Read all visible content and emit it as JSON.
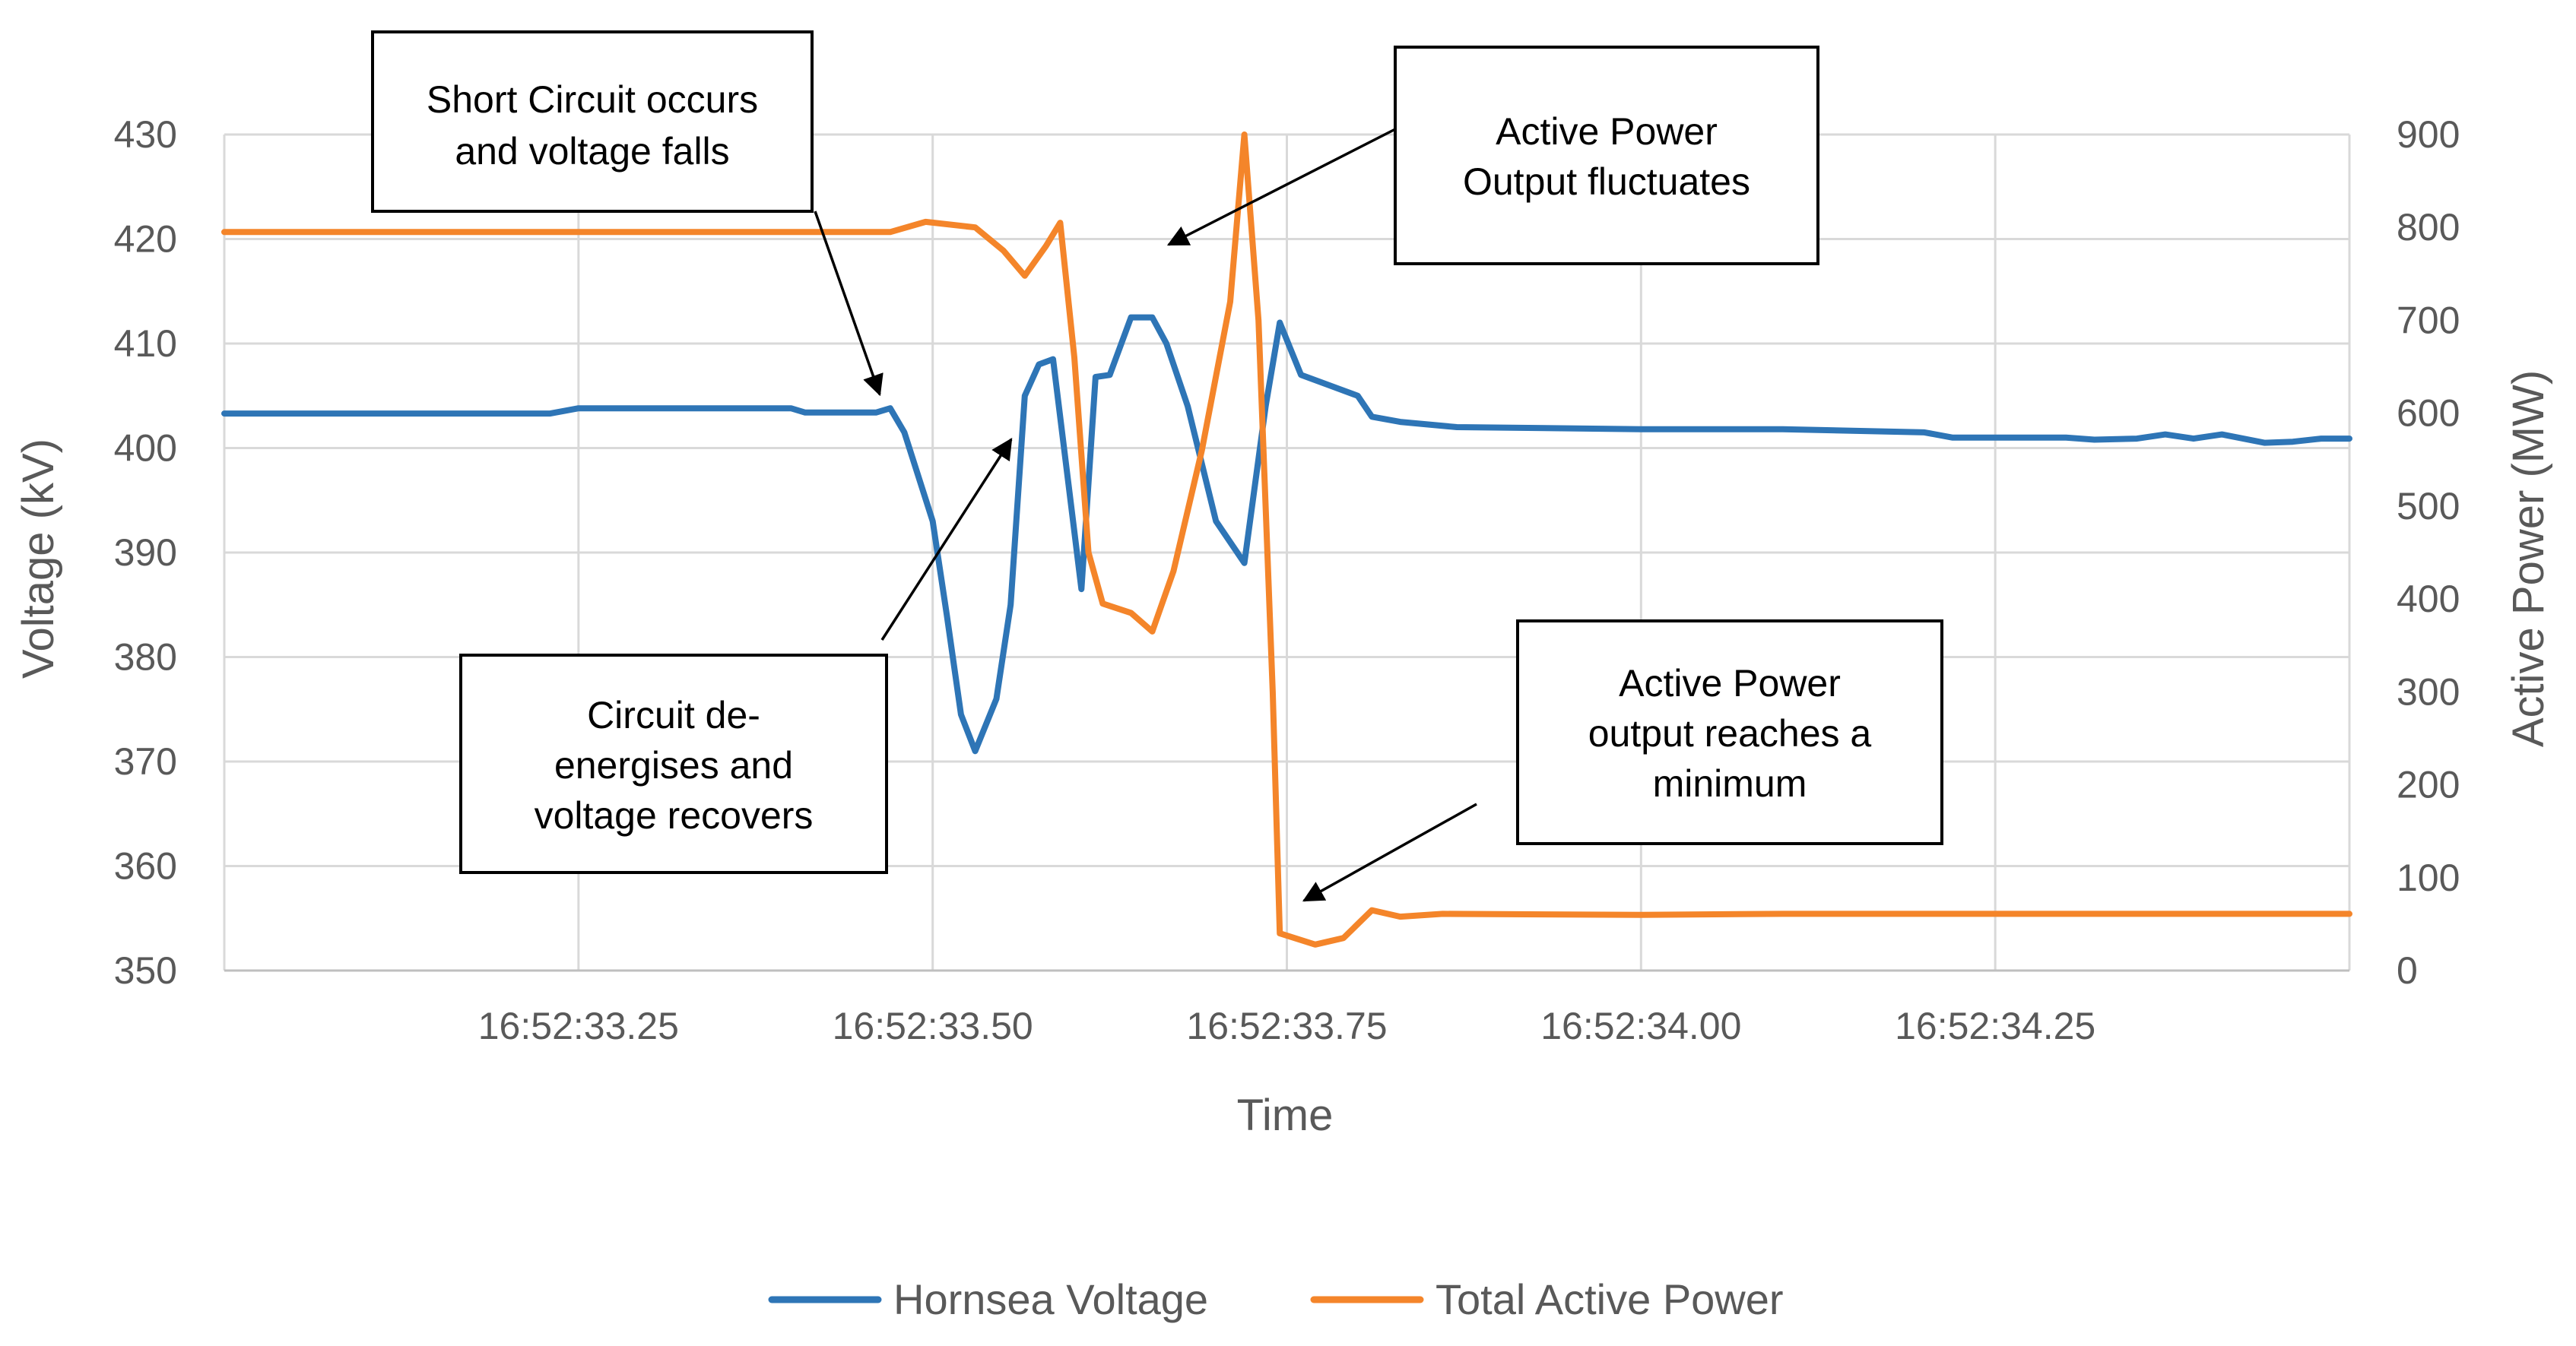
{
  "chart_data": {
    "type": "line",
    "xlabel": "Time",
    "ylabel_left": "Voltage (kV)",
    "ylabel_right": "Active Power (MW)",
    "ylim_left": [
      350,
      430
    ],
    "ylim_right": [
      0,
      900
    ],
    "xlim": [
      "16:52:33.000",
      "16:52:34.500"
    ],
    "left_ticks": [
      "350",
      "360",
      "370",
      "380",
      "390",
      "400",
      "410",
      "420",
      "430"
    ],
    "right_ticks": [
      "0",
      "100",
      "200",
      "300",
      "400",
      "500",
      "600",
      "700",
      "800",
      "900"
    ],
    "x_ticks": [
      {
        "time": "16:52:33.250",
        "label": "16:52:33.25"
      },
      {
        "time": "16:52:33.500",
        "label": "16:52:33.50"
      },
      {
        "time": "16:52:33.750",
        "label": "16:52:33.75"
      },
      {
        "time": "16:52:34.000",
        "label": "16:52:34.00"
      },
      {
        "time": "16:52:34.250",
        "label": "16:52:34.25"
      }
    ],
    "grid": true,
    "legend_position": "bottom",
    "series": [
      {
        "name": "Hornsea Voltage",
        "axis": "left",
        "color": "#2e75b6",
        "points": [
          [
            "16:52:33.000",
            403.3
          ],
          [
            "16:52:33.230",
            403.3
          ],
          [
            "16:52:33.250",
            403.8
          ],
          [
            "16:52:33.400",
            403.8
          ],
          [
            "16:52:33.410",
            403.4
          ],
          [
            "16:52:33.460",
            403.4
          ],
          [
            "16:52:33.470",
            403.8
          ],
          [
            "16:52:33.480",
            401.5
          ],
          [
            "16:52:33.500",
            393.0
          ],
          [
            "16:52:33.510",
            384.0
          ],
          [
            "16:52:33.520",
            374.5
          ],
          [
            "16:52:33.530",
            371.0
          ],
          [
            "16:52:33.545",
            376.0
          ],
          [
            "16:52:33.555",
            385.0
          ],
          [
            "16:52:33.565",
            405.0
          ],
          [
            "16:52:33.575",
            408.0
          ],
          [
            "16:52:33.585",
            408.5
          ],
          [
            "16:52:33.600",
            392.0
          ],
          [
            "16:52:33.605",
            386.5
          ],
          [
            "16:52:33.615",
            406.8
          ],
          [
            "16:52:33.625",
            407.0
          ],
          [
            "16:52:33.640",
            412.5
          ],
          [
            "16:52:33.655",
            412.5
          ],
          [
            "16:52:33.665",
            410.0
          ],
          [
            "16:52:33.680",
            404.0
          ],
          [
            "16:52:33.700",
            393.0
          ],
          [
            "16:52:33.720",
            389.0
          ],
          [
            "16:52:33.735",
            404.0
          ],
          [
            "16:52:33.745",
            412.0
          ],
          [
            "16:52:33.760",
            407.0
          ],
          [
            "16:52:33.780",
            406.0
          ],
          [
            "16:52:33.800",
            405.0
          ],
          [
            "16:52:33.810",
            403.0
          ],
          [
            "16:52:33.830",
            402.5
          ],
          [
            "16:52:33.870",
            402.0
          ],
          [
            "16:52:34.000",
            401.8
          ],
          [
            "16:52:34.100",
            401.8
          ],
          [
            "16:52:34.200",
            401.5
          ],
          [
            "16:52:34.220",
            401.0
          ],
          [
            "16:52:34.300",
            401.0
          ],
          [
            "16:52:34.320",
            400.8
          ],
          [
            "16:52:34.350",
            400.9
          ],
          [
            "16:52:34.370",
            401.3
          ],
          [
            "16:52:34.390",
            400.9
          ],
          [
            "16:52:34.410",
            401.3
          ],
          [
            "16:52:34.440",
            400.5
          ],
          [
            "16:52:34.460",
            400.6
          ],
          [
            "16:52:34.480",
            400.9
          ],
          [
            "16:52:34.500",
            400.9
          ]
        ]
      },
      {
        "name": "Total Active Power",
        "axis": "right",
        "color": "#f4852a",
        "points": [
          [
            "16:52:33.000",
            795
          ],
          [
            "16:52:33.470",
            795
          ],
          [
            "16:52:33.495",
            806
          ],
          [
            "16:52:33.530",
            800
          ],
          [
            "16:52:33.550",
            775
          ],
          [
            "16:52:33.565",
            748
          ],
          [
            "16:52:33.580",
            780
          ],
          [
            "16:52:33.590",
            805
          ],
          [
            "16:52:33.600",
            660
          ],
          [
            "16:52:33.610",
            450
          ],
          [
            "16:52:33.620",
            395
          ],
          [
            "16:52:33.640",
            385
          ],
          [
            "16:52:33.655",
            365
          ],
          [
            "16:52:33.670",
            430
          ],
          [
            "16:52:33.690",
            560
          ],
          [
            "16:52:33.710",
            720
          ],
          [
            "16:52:33.720",
            900
          ],
          [
            "16:52:33.730",
            700
          ],
          [
            "16:52:33.740",
            300
          ],
          [
            "16:52:33.745",
            40
          ],
          [
            "16:52:33.770",
            28
          ],
          [
            "16:52:33.790",
            35
          ],
          [
            "16:52:33.810",
            65
          ],
          [
            "16:52:33.830",
            58
          ],
          [
            "16:52:33.860",
            61
          ],
          [
            "16:52:34.000",
            60
          ],
          [
            "16:52:34.100",
            61
          ],
          [
            "16:52:34.300",
            61
          ],
          [
            "16:52:34.500",
            61
          ]
        ]
      }
    ],
    "annotations": [
      {
        "lines": [
          "Short Circuit occurs",
          "and voltage  falls"
        ]
      },
      {
        "lines": [
          "Active Power",
          "Output  fluctuates"
        ]
      },
      {
        "lines": [
          "Circuit de-",
          "energises and",
          "voltage  recovers"
        ]
      },
      {
        "lines": [
          "Active Power",
          "output  reaches a",
          "minimum"
        ]
      }
    ]
  }
}
